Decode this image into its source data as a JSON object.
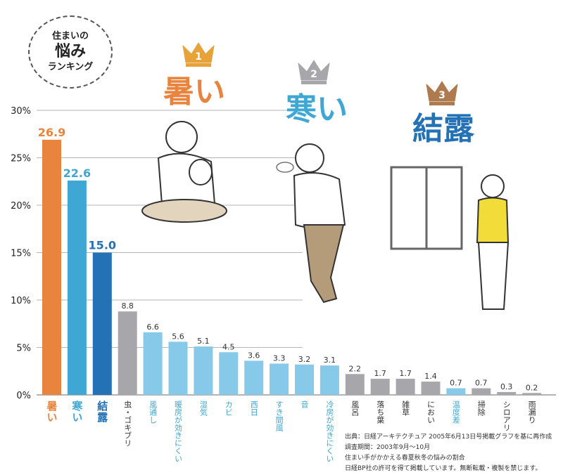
{
  "badge": {
    "line1": "住まいの",
    "line2": "悩み",
    "line3": "ランキング"
  },
  "chart_data": {
    "type": "bar",
    "ylim": [
      0,
      30
    ],
    "yticks": [
      "0%",
      "5%",
      "10%",
      "15%",
      "20%",
      "25%",
      "30%"
    ],
    "grid": true,
    "categories": [
      "暑い",
      "寒い",
      "結露",
      "虫・ゴキブリ",
      "風通し",
      "暖房が効きにくい",
      "湿気",
      "カビ",
      "西日",
      "すき間風",
      "音",
      "冷房が効きにくい",
      "風呂",
      "落ち葉",
      "雑草",
      "におい",
      "温度差",
      "掃除",
      "シロアリ",
      "雨漏り"
    ],
    "values": [
      26.9,
      22.6,
      15.0,
      8.8,
      6.6,
      5.6,
      5.1,
      4.5,
      3.6,
      3.3,
      3.2,
      3.1,
      2.2,
      1.7,
      1.7,
      1.4,
      0.7,
      0.7,
      0.3,
      0.2
    ],
    "value_labels": [
      "26.9",
      "22.6",
      "15.0",
      "8.8",
      "6.6",
      "5.6",
      "5.1",
      "4.5",
      "3.6",
      "3.3",
      "3.2",
      "3.1",
      "2.2",
      "1.7",
      "1.7",
      "1.4",
      "0.7",
      "0.7",
      "0.3",
      "0.2"
    ],
    "bar_colors": [
      "#e8843e",
      "#3fa7d4",
      "#2372b6",
      "#a7a7ab",
      "#86c9e9",
      "#86c9e9",
      "#86c9e9",
      "#86c9e9",
      "#86c9e9",
      "#86c9e9",
      "#86c9e9",
      "#86c9e9",
      "#a7a7ab",
      "#a7a7ab",
      "#a7a7ab",
      "#a7a7ab",
      "#86c9e9",
      "#a7a7ab",
      "#a7a7ab",
      "#a7a7ab"
    ],
    "label_colors": [
      "#e8843e",
      "#3fa7d4",
      "#2372b6",
      "#333333",
      "#3fa7d4",
      "#3fa7d4",
      "#3fa7d4",
      "#3fa7d4",
      "#3fa7d4",
      "#3fa7d4",
      "#3fa7d4",
      "#3fa7d4",
      "#333333",
      "#333333",
      "#333333",
      "#333333",
      "#3fa7d4",
      "#333333",
      "#333333",
      "#333333"
    ],
    "rank_labels": [
      {
        "rank": "1",
        "text": "暑い",
        "color": "#e8843e",
        "crown": "#e8a23a"
      },
      {
        "rank": "2",
        "text": "寒い",
        "color": "#3fa7d4",
        "crown": "#a7a7ab"
      },
      {
        "rank": "3",
        "text": "結露",
        "color": "#2372b6",
        "crown": "#b07a4f"
      }
    ]
  },
  "source": {
    "line1": "出典：日経アーキテクチュア 2005年6月13日号掲載グラフを基に再作成",
    "line2": "調査期間：2003年9月〜10月",
    "line3": "住まい手がかかえる春夏秋冬の悩みの割合",
    "line4": "日経BP社の許可を得て掲載しています。無断転載・複製を禁じます。"
  }
}
